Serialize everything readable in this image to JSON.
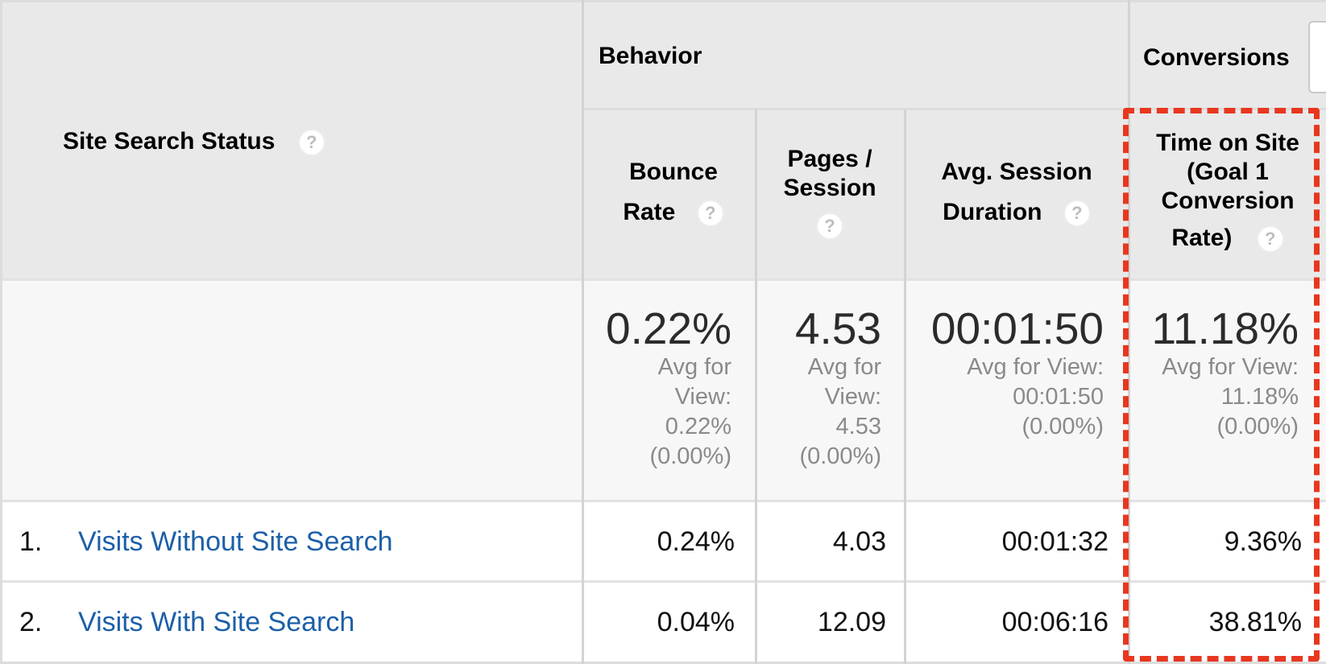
{
  "header": {
    "dimension": "Site Search Status",
    "group_behavior": "Behavior",
    "group_conversions": "Conversions",
    "columns": [
      {
        "line1": "Bounce",
        "line2": "Rate"
      },
      {
        "line1": "Pages /",
        "line2": "Session"
      },
      {
        "line1": "Avg. Session",
        "line2": "Duration"
      },
      {
        "line1": "Time on Site",
        "line2": "(Goal 1",
        "line3": "Conversion",
        "line4": "Rate)"
      }
    ],
    "help_glyph": "?"
  },
  "summary": [
    {
      "value": "0.22%",
      "avg_lines": [
        "Avg for",
        "View:",
        "0.22%",
        "(0.00%)"
      ]
    },
    {
      "value": "4.53",
      "avg_lines": [
        "Avg for",
        "View:",
        "4.53",
        "(0.00%)"
      ]
    },
    {
      "value": "00:01:50",
      "avg_lines": [
        "Avg for View:",
        "00:01:50",
        "(0.00%)"
      ]
    },
    {
      "value": "11.18%",
      "avg_lines": [
        "Avg for View:",
        "11.18%",
        "(0.00%)"
      ]
    }
  ],
  "rows": [
    {
      "index": "1.",
      "label": "Visits Without Site Search",
      "values": [
        "0.24%",
        "4.03",
        "00:01:32",
        "9.36%"
      ]
    },
    {
      "index": "2.",
      "label": "Visits With Site Search",
      "values": [
        "0.04%",
        "12.09",
        "00:06:16",
        "38.81%"
      ]
    }
  ],
  "colors": {
    "highlight": "#e8371f",
    "link": "#1c5fa8",
    "header_bg": "#e9e9e9"
  }
}
